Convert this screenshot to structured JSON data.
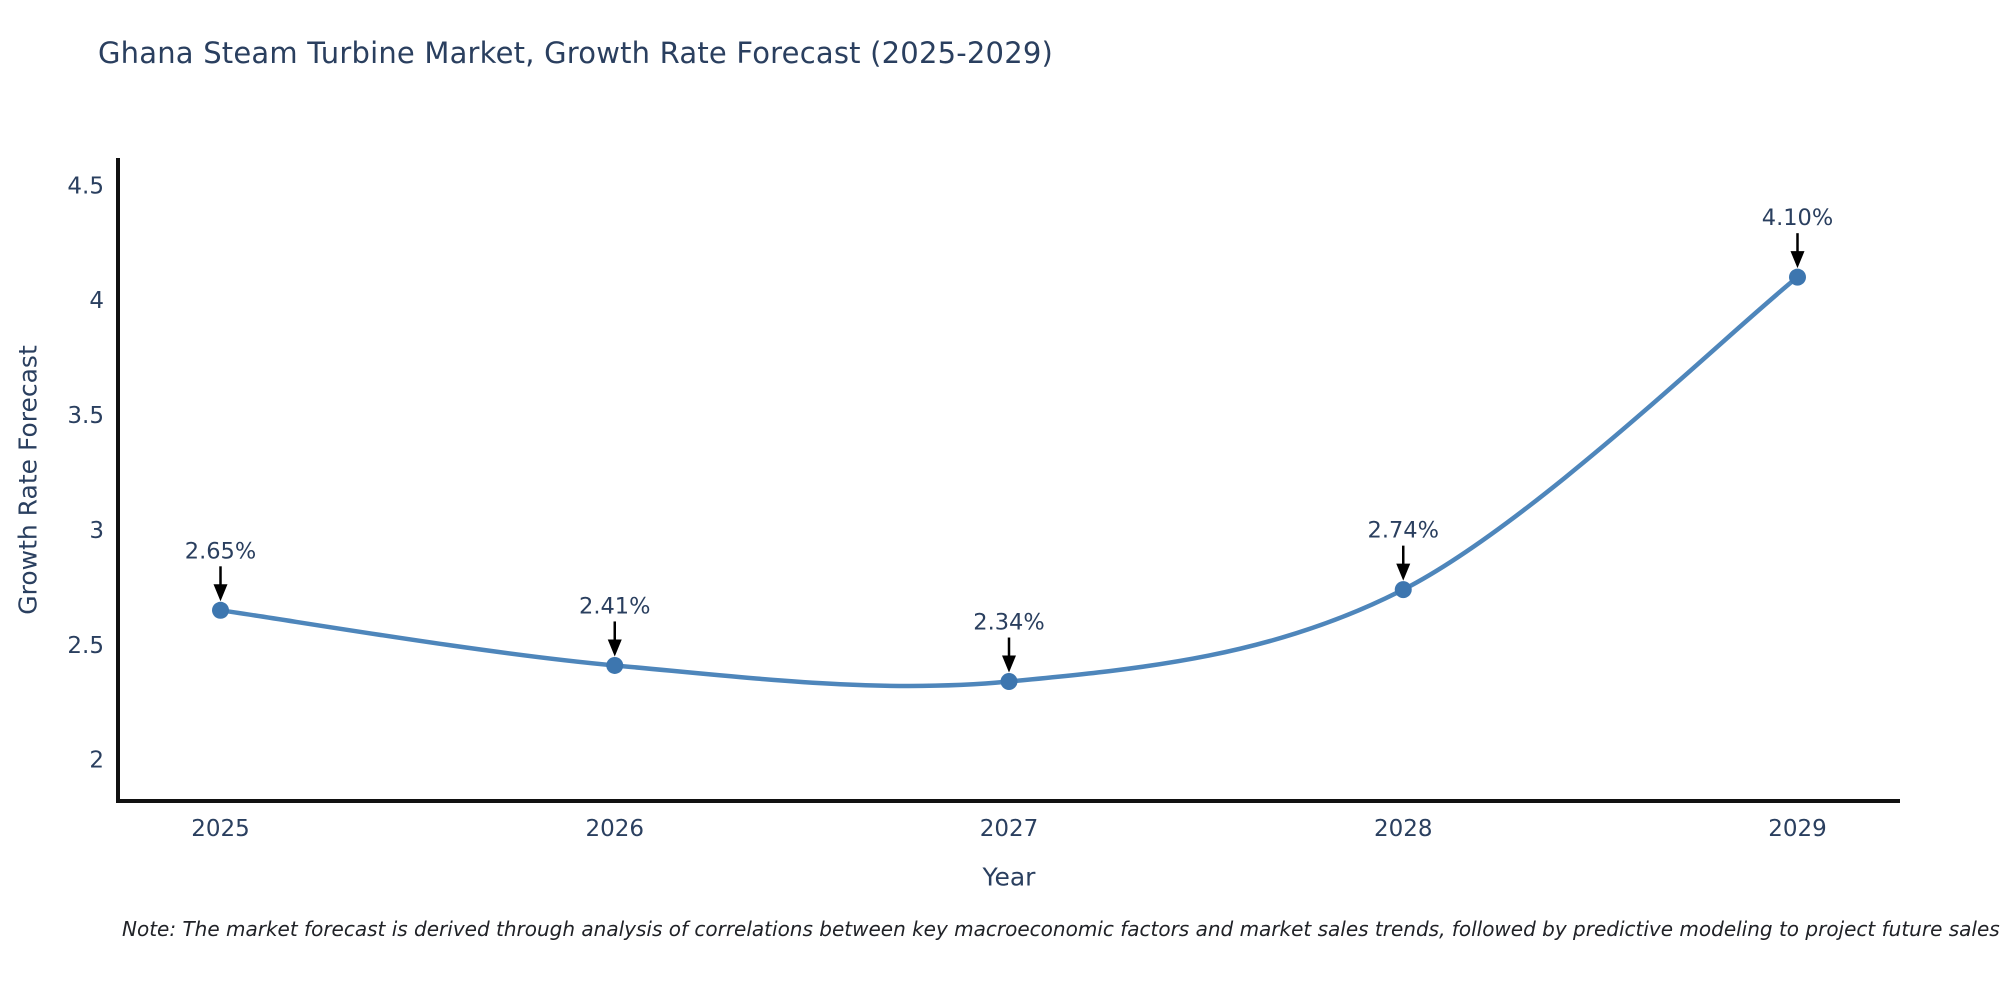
{
  "title": "Ghana Steam Turbine Market, Growth Rate Forecast (2025-2029)",
  "note": "Note: The market forecast is derived through analysis of correlations between key macroeconomic factors and market sales trends, followed by predictive modeling to project future sales",
  "chart_data": {
    "type": "line",
    "title": "Ghana Steam Turbine Market, Growth Rate Forecast (2025-2029)",
    "xlabel": "Year",
    "ylabel": "Growth Rate Forecast",
    "categories": [
      2025,
      2026,
      2027,
      2028,
      2029
    ],
    "values": [
      2.65,
      2.41,
      2.34,
      2.74,
      4.1
    ],
    "point_labels": [
      "2.65%",
      "2.41%",
      "2.34%",
      "2.74%",
      "4.10%"
    ],
    "yticks": [
      2,
      2.5,
      3,
      3.5,
      4,
      4.5
    ],
    "ylim": [
      1.82,
      4.61
    ],
    "xlim": [
      2024.74,
      2029.26
    ],
    "grid": false,
    "legend": "none",
    "curve": "spline",
    "annotation_style": "value label with downward black arrow onto each marker",
    "colors": {
      "line": "#4e86bb",
      "marker": "#3d76af",
      "text": "#2a3f5f",
      "axis": "#111111",
      "arrow": "#000000",
      "background": "#ffffff"
    }
  }
}
